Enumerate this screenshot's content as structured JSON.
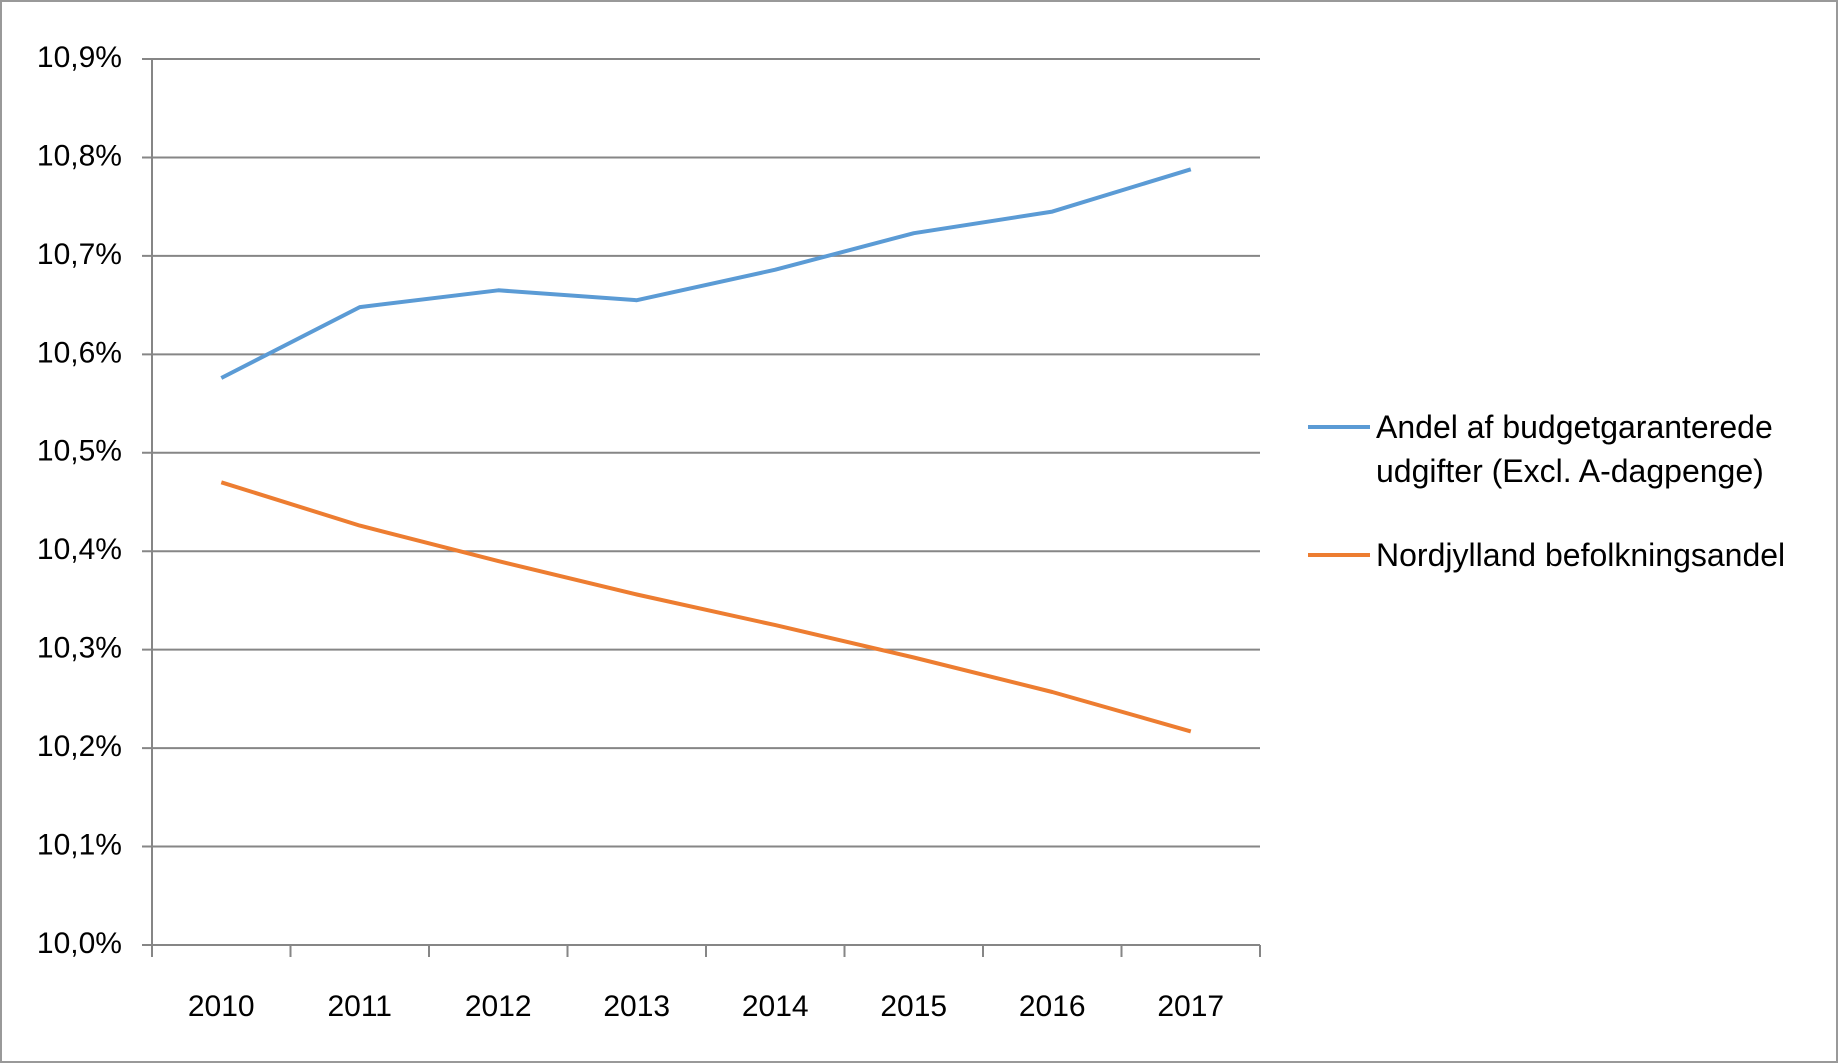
{
  "chart_data": {
    "type": "line",
    "categories": [
      "2010",
      "2011",
      "2012",
      "2013",
      "2014",
      "2015",
      "2016",
      "2017"
    ],
    "series": [
      {
        "name": "Andel af budgetgaranterede udgifter (Excl. A-dagpenge)",
        "color": "#5b9bd5",
        "values": [
          10.576,
          10.648,
          10.665,
          10.655,
          10.686,
          10.723,
          10.745,
          10.788
        ]
      },
      {
        "name": "Nordjylland befolkningsandel",
        "color": "#ed7d31",
        "values": [
          10.47,
          10.426,
          10.39,
          10.356,
          10.325,
          10.292,
          10.257,
          10.217
        ]
      }
    ],
    "ylim": [
      10.0,
      10.9
    ],
    "yticks": [
      {
        "value": 10.0,
        "label": "10,0%"
      },
      {
        "value": 10.1,
        "label": "10,1%"
      },
      {
        "value": 10.2,
        "label": "10,2%"
      },
      {
        "value": 10.3,
        "label": "10,3%"
      },
      {
        "value": 10.4,
        "label": "10,4%"
      },
      {
        "value": 10.5,
        "label": "10,5%"
      },
      {
        "value": 10.6,
        "label": "10,6%"
      },
      {
        "value": 10.7,
        "label": "10,7%"
      },
      {
        "value": 10.8,
        "label": "10,8%"
      },
      {
        "value": 10.9,
        "label": "10,9%"
      }
    ],
    "grid": true,
    "legend": "right"
  }
}
